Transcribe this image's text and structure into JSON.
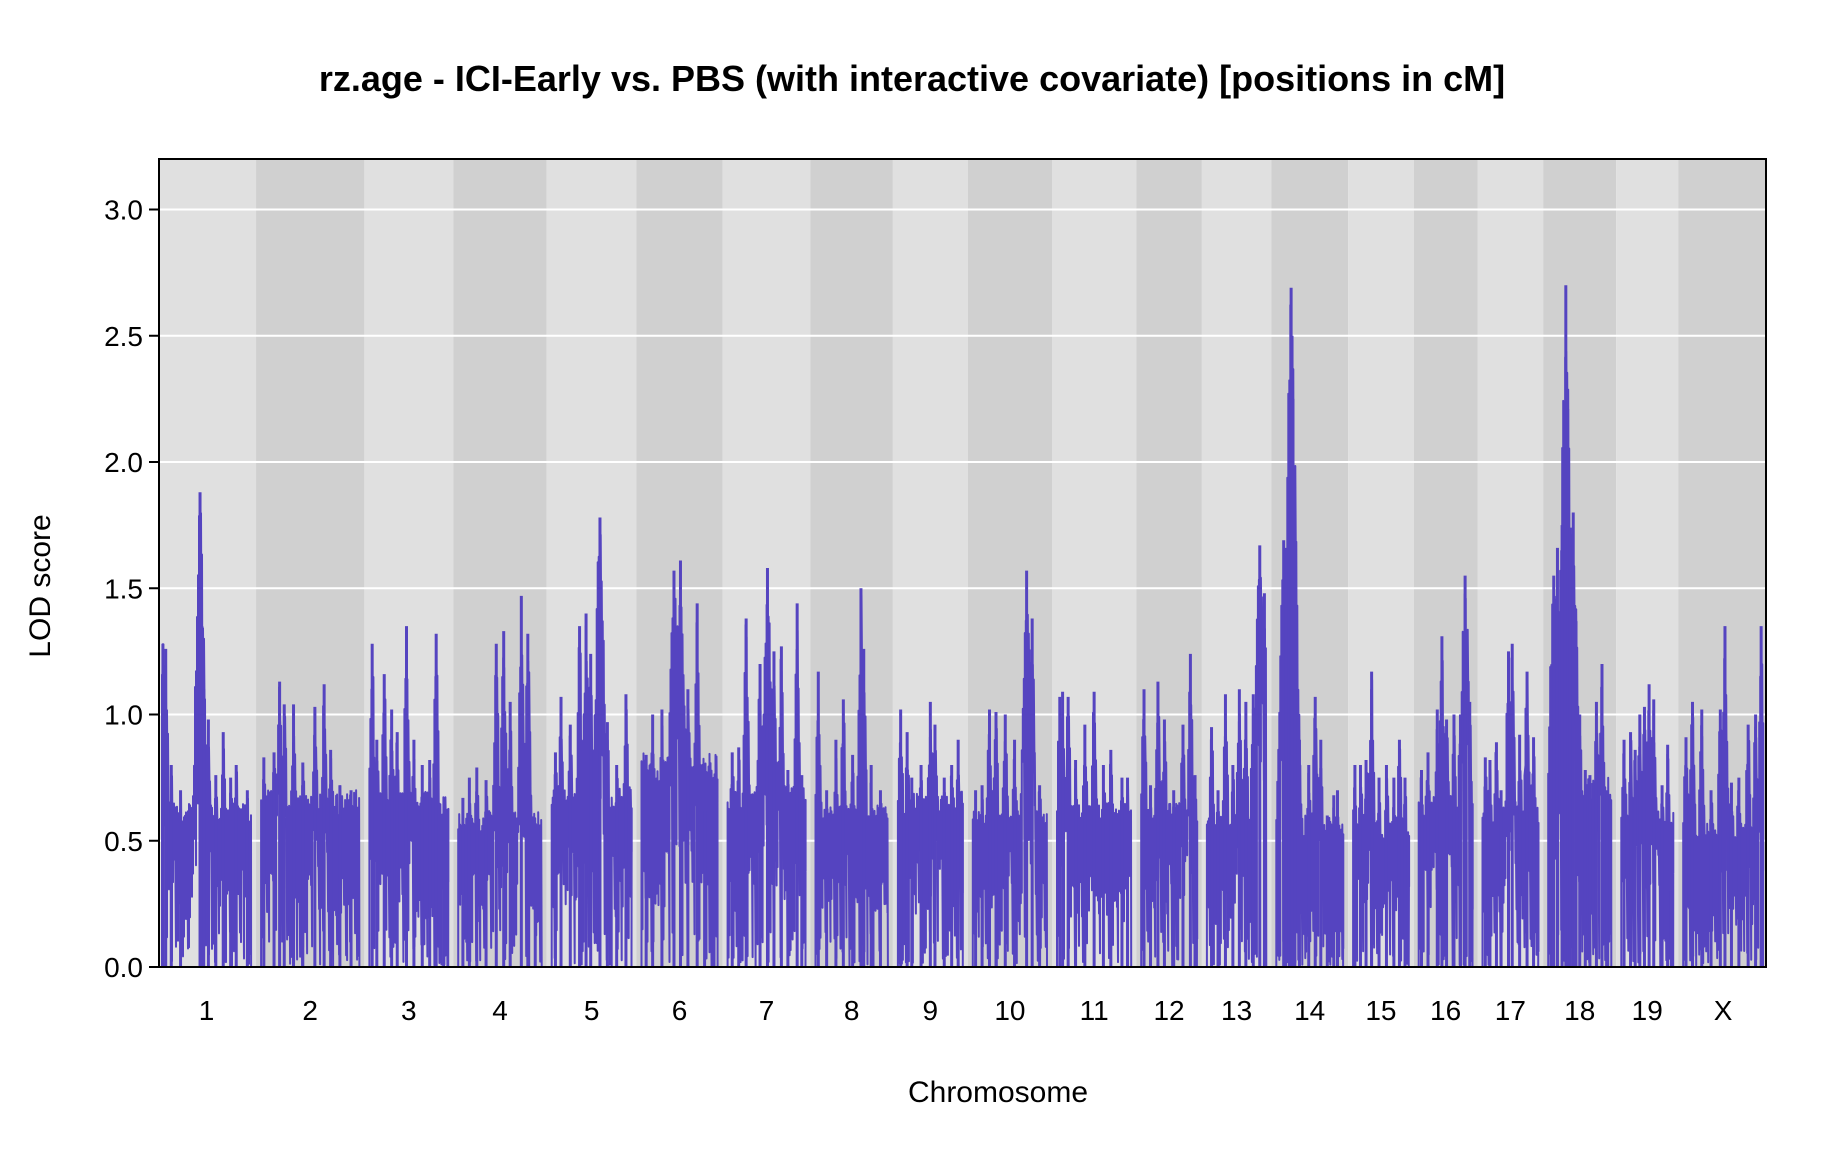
{
  "chart_data": {
    "type": "line",
    "title": "rz.age - ICI-Early vs. PBS (with interactive covariate) [positions in cM]",
    "xlabel": "Chromosome",
    "ylabel": "LOD score",
    "ylim": [
      0,
      3.2
    ],
    "yticks": [
      "0.0",
      "0.5",
      "1.0",
      "1.5",
      "2.0",
      "2.5",
      "3.0"
    ],
    "grid": true,
    "legend": "none",
    "colors": {
      "line": "#5544c0",
      "band_light": "#e0e0e0",
      "band_dark": "#d0d0d0",
      "grid": "#ffffff",
      "frame": "#000000"
    },
    "chromosomes": [
      {
        "name": "1",
        "length": 96,
        "baseline": 0.65,
        "peaks": [
          [
            1,
            1.28
          ],
          [
            4,
            1.26
          ],
          [
            10,
            0.8
          ],
          [
            20,
            0.7
          ],
          [
            41,
            1.88
          ],
          [
            43,
            1.35
          ],
          [
            45,
            1.1
          ],
          [
            50,
            0.98
          ],
          [
            58,
            0.76
          ],
          [
            66,
            0.93
          ],
          [
            74,
            0.75
          ],
          [
            80,
            0.8
          ],
          [
            92,
            0.7
          ]
        ]
      },
      {
        "name": "2",
        "length": 106,
        "baseline": 0.7,
        "peaks": [
          [
            3,
            0.83
          ],
          [
            14,
            0.85
          ],
          [
            20,
            1.13
          ],
          [
            25,
            1.04
          ],
          [
            35,
            1.04
          ],
          [
            45,
            0.81
          ],
          [
            58,
            1.03
          ],
          [
            68,
            1.12
          ],
          [
            75,
            0.86
          ],
          [
            85,
            0.72
          ],
          [
            97,
            0.7
          ]
        ]
      },
      {
        "name": "3",
        "length": 85,
        "baseline": 0.7,
        "peaks": [
          [
            3,
            1.28
          ],
          [
            8,
            0.9
          ],
          [
            16,
            1.16
          ],
          [
            24,
            1.02
          ],
          [
            30,
            0.93
          ],
          [
            40,
            1.35
          ],
          [
            48,
            0.9
          ],
          [
            57,
            0.8
          ],
          [
            65,
            0.82
          ],
          [
            72,
            1.32
          ],
          [
            80,
            0.5
          ]
        ]
      },
      {
        "name": "4",
        "length": 90,
        "baseline": 0.62,
        "peaks": [
          [
            5,
            0.67
          ],
          [
            12,
            0.75
          ],
          [
            20,
            0.79
          ],
          [
            30,
            0.74
          ],
          [
            41,
            1.28
          ],
          [
            49,
            1.33
          ],
          [
            56,
            1.05
          ],
          [
            68,
            1.47
          ],
          [
            75,
            1.32
          ],
          [
            83,
            0.57
          ]
        ]
      },
      {
        "name": "5",
        "length": 86,
        "baseline": 0.72,
        "peaks": [
          [
            4,
            0.85
          ],
          [
            10,
            1.07
          ],
          [
            20,
            0.96
          ],
          [
            30,
            1.35
          ],
          [
            37,
            1.4
          ],
          [
            42,
            1.24
          ],
          [
            52,
            1.78
          ],
          [
            60,
            0.97
          ],
          [
            70,
            0.8
          ],
          [
            80,
            1.08
          ]
        ]
      },
      {
        "name": "6",
        "length": 82,
        "baseline": 0.85,
        "peaks": [
          [
            5,
            0.84
          ],
          [
            12,
            1.0
          ],
          [
            22,
            1.02
          ],
          [
            35,
            1.57
          ],
          [
            42,
            1.61
          ],
          [
            50,
            1.1
          ],
          [
            60,
            1.44
          ],
          [
            68,
            0.62
          ],
          [
            76,
            0.74
          ]
        ]
      },
      {
        "name": "7",
        "length": 84,
        "baseline": 0.72,
        "peaks": [
          [
            5,
            0.85
          ],
          [
            12,
            0.87
          ],
          [
            20,
            1.38
          ],
          [
            35,
            1.2
          ],
          [
            43,
            1.58
          ],
          [
            50,
            1.25
          ],
          [
            58,
            1.27
          ],
          [
            65,
            0.78
          ],
          [
            75,
            1.44
          ],
          [
            80,
            0.76
          ]
        ]
      },
      {
        "name": "8",
        "length": 78,
        "baseline": 0.65,
        "peaks": [
          [
            3,
            1.17
          ],
          [
            12,
            0.7
          ],
          [
            22,
            0.9
          ],
          [
            30,
            1.06
          ],
          [
            40,
            0.84
          ],
          [
            49,
            1.5
          ],
          [
            52,
            1.26
          ],
          [
            60,
            0.8
          ],
          [
            70,
            0.7
          ]
        ]
      },
      {
        "name": "9",
        "length": 70,
        "baseline": 0.7,
        "peaks": [
          [
            3,
            1.02
          ],
          [
            10,
            0.93
          ],
          [
            15,
            0.75
          ],
          [
            25,
            0.8
          ],
          [
            35,
            1.05
          ],
          [
            40,
            0.96
          ],
          [
            50,
            0.75
          ],
          [
            58,
            0.8
          ],
          [
            65,
            0.9
          ]
        ]
      },
      {
        "name": "10",
        "length": 80,
        "baseline": 0.62,
        "peaks": [
          [
            3,
            0.7
          ],
          [
            10,
            0.72
          ],
          [
            18,
            1.02
          ],
          [
            25,
            1.01
          ],
          [
            35,
            1.0
          ],
          [
            45,
            0.9
          ],
          [
            58,
            1.57
          ],
          [
            64,
            1.38
          ],
          [
            72,
            0.72
          ]
        ]
      },
      {
        "name": "11",
        "length": 80,
        "baseline": 0.65,
        "peaks": [
          [
            3,
            1.07
          ],
          [
            6,
            1.09
          ],
          [
            12,
            1.07
          ],
          [
            20,
            0.82
          ],
          [
            30,
            0.96
          ],
          [
            40,
            1.09
          ],
          [
            50,
            0.8
          ],
          [
            58,
            0.86
          ],
          [
            70,
            0.75
          ],
          [
            76,
            0.75
          ]
        ]
      },
      {
        "name": "12",
        "length": 60,
        "baseline": 0.65,
        "peaks": [
          [
            3,
            1.1
          ],
          [
            10,
            0.72
          ],
          [
            18,
            1.13
          ],
          [
            25,
            0.98
          ],
          [
            35,
            0.7
          ],
          [
            45,
            0.96
          ],
          [
            53,
            1.24
          ],
          [
            58,
            0.76
          ]
        ]
      },
      {
        "name": "13",
        "length": 64,
        "baseline": 0.62,
        "peaks": [
          [
            5,
            0.95
          ],
          [
            12,
            0.7
          ],
          [
            20,
            1.08
          ],
          [
            28,
            0.8
          ],
          [
            35,
            1.1
          ],
          [
            42,
            1.05
          ],
          [
            50,
            1.08
          ],
          [
            57,
            1.67
          ],
          [
            62,
            1.48
          ]
        ]
      },
      {
        "name": "14",
        "length": 72,
        "baseline": 0.6,
        "peaks": [
          [
            8,
            1.69
          ],
          [
            10,
            1.66
          ],
          [
            14,
            1.85
          ],
          [
            16,
            2.69
          ],
          [
            17,
            2.5
          ],
          [
            18,
            2.25
          ],
          [
            20,
            1.1
          ],
          [
            25,
            0.9
          ],
          [
            35,
            0.8
          ],
          [
            42,
            1.07
          ],
          [
            48,
            0.9
          ],
          [
            55,
            0.6
          ],
          [
            62,
            0.68
          ],
          [
            66,
            0.7
          ]
        ]
      },
      {
        "name": "15",
        "length": 60,
        "baseline": 0.58,
        "peaks": [
          [
            2,
            0.8
          ],
          [
            8,
            0.8
          ],
          [
            14,
            0.82
          ],
          [
            20,
            1.17
          ],
          [
            28,
            0.75
          ],
          [
            36,
            0.8
          ],
          [
            44,
            0.75
          ],
          [
            50,
            0.9
          ],
          [
            56,
            0.75
          ]
        ]
      },
      {
        "name": "16",
        "length": 58,
        "baseline": 0.68,
        "peaks": [
          [
            3,
            0.78
          ],
          [
            10,
            0.85
          ],
          [
            20,
            1.02
          ],
          [
            25,
            1.31
          ],
          [
            30,
            0.98
          ],
          [
            38,
            1.0
          ],
          [
            45,
            1.0
          ],
          [
            50,
            1.55
          ],
          [
            55,
            1.05
          ]
        ]
      },
      {
        "name": "17",
        "length": 60,
        "baseline": 0.65,
        "peaks": [
          [
            3,
            0.83
          ],
          [
            8,
            0.82
          ],
          [
            15,
            0.89
          ],
          [
            20,
            0.7
          ],
          [
            28,
            1.25
          ],
          [
            32,
            1.28
          ],
          [
            40,
            0.92
          ],
          [
            48,
            1.17
          ],
          [
            55,
            0.91
          ]
        ]
      },
      {
        "name": "18",
        "length": 68,
        "baseline": 0.75,
        "peaks": [
          [
            3,
            0.98
          ],
          [
            6,
            1.55
          ],
          [
            10,
            1.66
          ],
          [
            15,
            1.75
          ],
          [
            19,
            2.7
          ],
          [
            21,
            2.21
          ],
          [
            24,
            1.74
          ],
          [
            27,
            1.8
          ],
          [
            30,
            1.37
          ],
          [
            34,
            1.0
          ],
          [
            40,
            0.78
          ],
          [
            45,
            0.76
          ],
          [
            52,
            1.05
          ],
          [
            58,
            1.2
          ],
          [
            63,
            0.7
          ]
        ]
      },
      {
        "name": "19",
        "length": 56,
        "baseline": 0.62,
        "peaks": [
          [
            3,
            0.9
          ],
          [
            10,
            0.93
          ],
          [
            15,
            0.86
          ],
          [
            20,
            1.0
          ],
          [
            25,
            1.03
          ],
          [
            30,
            1.12
          ],
          [
            35,
            1.06
          ],
          [
            44,
            0.72
          ],
          [
            50,
            0.88
          ],
          [
            54,
            0.3
          ]
        ]
      },
      {
        "name": "X",
        "length": 86,
        "baseline": 0.58,
        "peaks": [
          [
            3,
            0.91
          ],
          [
            10,
            1.05
          ],
          [
            20,
            1.02
          ],
          [
            30,
            0.7
          ],
          [
            40,
            1.02
          ],
          [
            45,
            1.35
          ],
          [
            52,
            0.73
          ],
          [
            60,
            0.75
          ],
          [
            70,
            0.96
          ],
          [
            78,
            1.0
          ],
          [
            84,
            1.35
          ]
        ]
      }
    ]
  }
}
